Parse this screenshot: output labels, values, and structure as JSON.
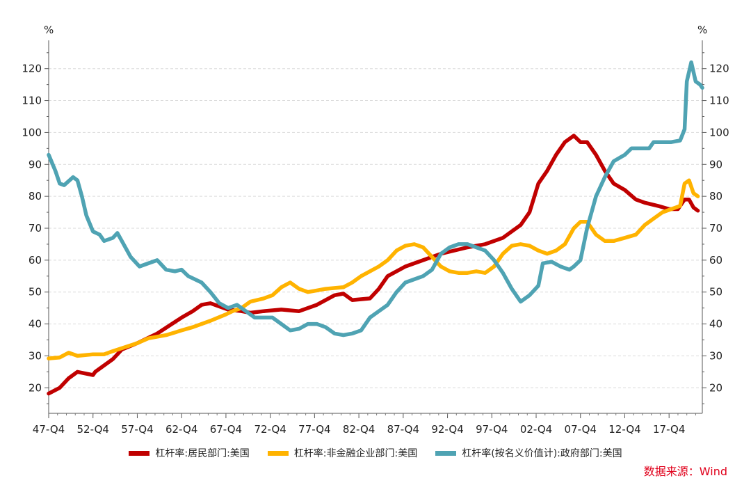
{
  "chart_data": {
    "type": "line",
    "left_unit": "%",
    "right_unit": "%",
    "ylim": [
      12,
      128
    ],
    "yticks": [
      20,
      30,
      40,
      50,
      60,
      70,
      80,
      90,
      100,
      110,
      120
    ],
    "x_tick_labels": [
      "47-Q4",
      "52-Q4",
      "57-Q4",
      "62-Q4",
      "67-Q4",
      "72-Q4",
      "77-Q4",
      "82-Q4",
      "87-Q4",
      "92-Q4",
      "97-Q4",
      "02-Q4",
      "07-Q4",
      "12-Q4",
      "17-Q4"
    ],
    "xlim": [
      1947.75,
      2021.5
    ],
    "grid": "horizontal-dashed",
    "legend_position": "bottom",
    "series": [
      {
        "name": "杠杆率:居民部门:美国",
        "color": "#c00000",
        "points": [
          [
            1947.75,
            18.2
          ],
          [
            1949.0,
            20
          ],
          [
            1950.0,
            23
          ],
          [
            1951.0,
            25
          ],
          [
            1952.75,
            24
          ],
          [
            1953.0,
            25
          ],
          [
            1955.0,
            29
          ],
          [
            1956.0,
            32
          ],
          [
            1957.75,
            34
          ],
          [
            1960.0,
            37
          ],
          [
            1962.75,
            42
          ],
          [
            1964.0,
            44
          ],
          [
            1965.0,
            46
          ],
          [
            1966.0,
            46.5
          ],
          [
            1967.0,
            45.5
          ],
          [
            1968.0,
            44.5
          ],
          [
            1969.5,
            44
          ],
          [
            1970.5,
            43.5
          ],
          [
            1972.0,
            44
          ],
          [
            1974.0,
            44.5
          ],
          [
            1976.0,
            44
          ],
          [
            1978.0,
            46
          ],
          [
            1980.0,
            49
          ],
          [
            1981.0,
            49.5
          ],
          [
            1982.0,
            47.5
          ],
          [
            1984.0,
            48
          ],
          [
            1985.0,
            51
          ],
          [
            1986.0,
            55
          ],
          [
            1988.0,
            58
          ],
          [
            1990.0,
            60
          ],
          [
            1992.0,
            62
          ],
          [
            1995.0,
            64
          ],
          [
            1997.0,
            65
          ],
          [
            1999.0,
            67
          ],
          [
            2001.0,
            71
          ],
          [
            2002.0,
            75
          ],
          [
            2003.0,
            84
          ],
          [
            2004.0,
            88
          ],
          [
            2005.0,
            93
          ],
          [
            2006.0,
            97
          ],
          [
            2007.0,
            99
          ],
          [
            2007.75,
            97
          ],
          [
            2008.5,
            97
          ],
          [
            2009.5,
            93
          ],
          [
            2010.5,
            88
          ],
          [
            2011.5,
            84
          ],
          [
            2012.75,
            82
          ],
          [
            2014.0,
            79
          ],
          [
            2015.0,
            78
          ],
          [
            2016.5,
            77
          ],
          [
            2017.75,
            76
          ],
          [
            2018.75,
            76
          ],
          [
            2019.5,
            79
          ],
          [
            2020.0,
            79
          ],
          [
            2020.5,
            76.5
          ],
          [
            2021.0,
            75.5
          ]
        ]
      },
      {
        "name": "杠杆率:非金融企业部门:美国",
        "color": "#ffb300",
        "points": [
          [
            1947.75,
            29.2
          ],
          [
            1949.0,
            29.5
          ],
          [
            1950.0,
            31
          ],
          [
            1951.0,
            30
          ],
          [
            1952.75,
            30.5
          ],
          [
            1954.0,
            30.5
          ],
          [
            1955.0,
            31.5
          ],
          [
            1957.75,
            34
          ],
          [
            1959.0,
            35.5
          ],
          [
            1961.0,
            36.5
          ],
          [
            1962.75,
            38
          ],
          [
            1964.0,
            39
          ],
          [
            1966.0,
            41
          ],
          [
            1967.75,
            43
          ],
          [
            1968.5,
            44
          ],
          [
            1969.5,
            45
          ],
          [
            1970.5,
            47
          ],
          [
            1972.0,
            48
          ],
          [
            1973.0,
            49
          ],
          [
            1974.0,
            51.5
          ],
          [
            1975.0,
            53
          ],
          [
            1976.0,
            51
          ],
          [
            1977.0,
            50
          ],
          [
            1978.0,
            50.5
          ],
          [
            1979.0,
            51
          ],
          [
            1981.0,
            51.5
          ],
          [
            1982.0,
            53
          ],
          [
            1983.0,
            55
          ],
          [
            1985.0,
            58
          ],
          [
            1986.0,
            60
          ],
          [
            1987.0,
            63
          ],
          [
            1988.0,
            64.5
          ],
          [
            1989.0,
            65
          ],
          [
            1990.0,
            64
          ],
          [
            1991.0,
            61
          ],
          [
            1992.0,
            58
          ],
          [
            1993.0,
            56.5
          ],
          [
            1994.0,
            56
          ],
          [
            1995.0,
            56
          ],
          [
            1996.0,
            56.5
          ],
          [
            1997.0,
            56
          ],
          [
            1998.0,
            58
          ],
          [
            1999.0,
            62
          ],
          [
            2000.0,
            64.5
          ],
          [
            2001.0,
            65
          ],
          [
            2002.0,
            64.5
          ],
          [
            2003.0,
            63
          ],
          [
            2004.0,
            62
          ],
          [
            2005.0,
            63
          ],
          [
            2006.0,
            65
          ],
          [
            2007.0,
            70
          ],
          [
            2007.75,
            72
          ],
          [
            2008.5,
            72
          ],
          [
            2009.5,
            68
          ],
          [
            2010.5,
            66
          ],
          [
            2011.5,
            66
          ],
          [
            2012.75,
            67
          ],
          [
            2014.0,
            68
          ],
          [
            2015.0,
            71
          ],
          [
            2016.0,
            73
          ],
          [
            2017.0,
            75
          ],
          [
            2018.0,
            76
          ],
          [
            2019.0,
            77
          ],
          [
            2019.5,
            84
          ],
          [
            2020.0,
            85
          ],
          [
            2020.5,
            81
          ],
          [
            2021.0,
            80
          ]
        ]
      },
      {
        "name": "杠杆率(按名义价值计):政府部门:美国",
        "color": "#4fa3b3",
        "points": [
          [
            1947.75,
            93
          ],
          [
            1948.5,
            88
          ],
          [
            1949.0,
            84
          ],
          [
            1949.5,
            83.5
          ],
          [
            1950.5,
            86
          ],
          [
            1951.0,
            85
          ],
          [
            1951.5,
            80
          ],
          [
            1952.0,
            74
          ],
          [
            1952.75,
            69
          ],
          [
            1953.5,
            68
          ],
          [
            1954.0,
            66
          ],
          [
            1955.0,
            67
          ],
          [
            1955.5,
            68.5
          ],
          [
            1956.0,
            66
          ],
          [
            1957.0,
            61
          ],
          [
            1958.0,
            58
          ],
          [
            1959.0,
            59
          ],
          [
            1960.0,
            60
          ],
          [
            1961.0,
            57
          ],
          [
            1962.0,
            56.5
          ],
          [
            1962.75,
            57
          ],
          [
            1963.5,
            55
          ],
          [
            1965.0,
            53
          ],
          [
            1966.0,
            50
          ],
          [
            1967.0,
            46.5
          ],
          [
            1968.0,
            45
          ],
          [
            1969.0,
            46
          ],
          [
            1970.0,
            44
          ],
          [
            1971.0,
            42
          ],
          [
            1972.0,
            42
          ],
          [
            1973.0,
            42
          ],
          [
            1974.0,
            40
          ],
          [
            1975.0,
            38
          ],
          [
            1976.0,
            38.5
          ],
          [
            1977.0,
            40
          ],
          [
            1978.0,
            40
          ],
          [
            1979.0,
            39
          ],
          [
            1980.0,
            37
          ],
          [
            1981.0,
            36.5
          ],
          [
            1982.0,
            37
          ],
          [
            1983.0,
            38
          ],
          [
            1984.0,
            42
          ],
          [
            1985.0,
            44
          ],
          [
            1986.0,
            46
          ],
          [
            1987.0,
            50
          ],
          [
            1988.0,
            53
          ],
          [
            1989.0,
            54
          ],
          [
            1990.0,
            55
          ],
          [
            1991.0,
            57
          ],
          [
            1992.0,
            62
          ],
          [
            1993.0,
            64
          ],
          [
            1994.0,
            65
          ],
          [
            1995.0,
            65
          ],
          [
            1996.0,
            64
          ],
          [
            1997.0,
            63
          ],
          [
            1998.0,
            60
          ],
          [
            1999.0,
            56
          ],
          [
            2000.0,
            51
          ],
          [
            2001.0,
            47
          ],
          [
            2002.0,
            49
          ],
          [
            2003.0,
            52
          ],
          [
            2003.5,
            59
          ],
          [
            2004.5,
            59.5
          ],
          [
            2005.5,
            58
          ],
          [
            2006.5,
            57
          ],
          [
            2007.0,
            58
          ],
          [
            2007.75,
            60
          ],
          [
            2008.5,
            70
          ],
          [
            2009.5,
            80
          ],
          [
            2010.5,
            86
          ],
          [
            2011.5,
            91
          ],
          [
            2012.75,
            93
          ],
          [
            2013.5,
            95
          ],
          [
            2014.5,
            95
          ],
          [
            2015.5,
            95
          ],
          [
            2016.0,
            97
          ],
          [
            2017.0,
            97
          ],
          [
            2018.0,
            97
          ],
          [
            2019.0,
            97.5
          ],
          [
            2019.5,
            101
          ],
          [
            2019.75,
            116
          ],
          [
            2020.25,
            122
          ],
          [
            2020.75,
            116
          ],
          [
            2021.25,
            115
          ],
          [
            2021.5,
            114
          ]
        ]
      }
    ]
  },
  "source_text": "数据来源：Wind"
}
